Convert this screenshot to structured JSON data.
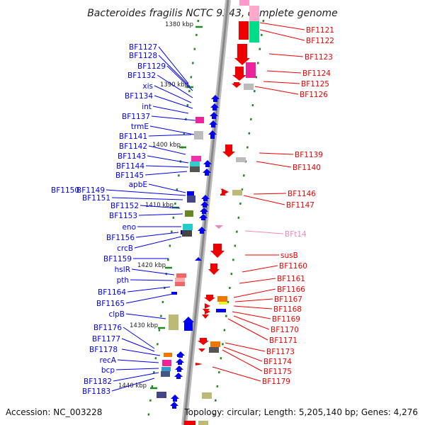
{
  "title": "Bacteroides fragilis NCTC 9343, complete genome",
  "footer": {
    "accession": "Accession: NC_003228",
    "topology": "Topology: circular; Length: 5,205,140 bp; Genes: 4,276"
  },
  "colors": {
    "forward_strand": "#0000ee",
    "reverse_strand": "#ee0000",
    "rna": "#ee88bb",
    "backbone": "#999999",
    "tick": "#228822"
  },
  "kbp_labels": [
    "1380 kbp",
    "1390 kbp",
    "1400 kbp",
    "1410 kbp",
    "1420 kbp",
    "1430 kbp",
    "1440 kbp"
  ],
  "left_genes": [
    "BF1127",
    "BF1128",
    "BF1129",
    "BF1132",
    "xis",
    "BF1134",
    "int",
    "BF1137",
    "trmE",
    "BF1141",
    "BF1142",
    "BF1143",
    "BF1144",
    "BF1145",
    "apbE",
    "BF1150",
    "BF1149",
    "BF1151",
    "BF1152",
    "BF1153",
    "eno",
    "BF1156",
    "crcB",
    "BF1159",
    "hslR",
    "pth",
    "BF1164",
    "BF1165",
    "clpB",
    "BF1176",
    "BF1177",
    "BF1178",
    "recA",
    "bcp",
    "BF1182",
    "BF1183"
  ],
  "right_genes": [
    "BF1121",
    "BF1122",
    "BF1123",
    "BF1124",
    "BF1125",
    "BF1126",
    "BF1139",
    "BF1140",
    "BF1146",
    "BF1147",
    "BFt14",
    "susB",
    "BF1160",
    "BF1161",
    "BF1166",
    "BF1167",
    "BF1168",
    "BF1169",
    "BF1170",
    "BF1171",
    "BF1173",
    "BF1174",
    "BF1175",
    "BF1179"
  ]
}
